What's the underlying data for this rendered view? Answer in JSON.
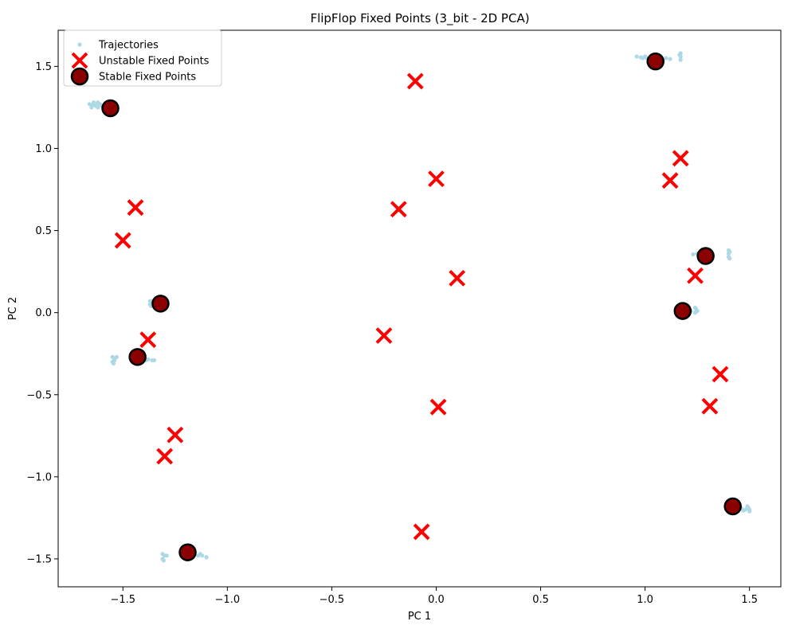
{
  "chart_data": {
    "type": "scatter",
    "title": "FlipFlop Fixed Points (3_bit - 2D PCA)",
    "xlabel": "PC 1",
    "ylabel": "PC 2",
    "xlim": [
      -1.81,
      1.65
    ],
    "ylim": [
      -1.67,
      1.72
    ],
    "x_ticks": [
      {
        "value": -1.5,
        "label": "−1.5"
      },
      {
        "value": -1.0,
        "label": "−1.0"
      },
      {
        "value": -0.5,
        "label": "−0.5"
      },
      {
        "value": 0.0,
        "label": "0.0"
      },
      {
        "value": 0.5,
        "label": "0.5"
      },
      {
        "value": 1.0,
        "label": "1.0"
      },
      {
        "value": 1.5,
        "label": "1.5"
      }
    ],
    "y_ticks": [
      {
        "value": -1.5,
        "label": "−1.5"
      },
      {
        "value": -1.0,
        "label": "−1.0"
      },
      {
        "value": -0.5,
        "label": "−0.5"
      },
      {
        "value": 0.0,
        "label": "0.0"
      },
      {
        "value": 0.5,
        "label": "0.5"
      },
      {
        "value": 1.0,
        "label": "1.0"
      },
      {
        "value": 1.5,
        "label": "1.5"
      }
    ],
    "grid": false,
    "legend_position": "top-left",
    "series": [
      {
        "name": "Trajectories",
        "marker": "dot",
        "color": "#add8e6",
        "points": [
          [
            -1.66,
            1.27
          ],
          [
            -1.65,
            1.26
          ],
          [
            -1.64,
            1.27
          ],
          [
            -1.65,
            1.25
          ],
          [
            -1.63,
            1.26
          ],
          [
            -1.62,
            1.25
          ],
          [
            -1.61,
            1.27
          ],
          [
            -1.6,
            1.26
          ],
          [
            -1.59,
            1.26
          ],
          [
            -1.58,
            1.25
          ],
          [
            -1.64,
            1.28
          ],
          [
            -1.62,
            1.28
          ],
          [
            1.0,
            1.56
          ],
          [
            0.96,
            1.56
          ],
          [
            0.98,
            1.555
          ],
          [
            0.99,
            1.55
          ],
          [
            1.01,
            1.55
          ],
          [
            1.03,
            1.545
          ],
          [
            1.05,
            1.54
          ],
          [
            1.07,
            1.54
          ],
          [
            1.1,
            1.55
          ],
          [
            1.12,
            1.545
          ],
          [
            1.17,
            1.58
          ],
          [
            1.17,
            1.56
          ],
          [
            1.17,
            1.54
          ],
          [
            1.165,
            1.57
          ],
          [
            1.23,
            0.355
          ],
          [
            1.25,
            0.36
          ],
          [
            1.27,
            0.36
          ],
          [
            1.28,
            0.355
          ],
          [
            1.29,
            0.35
          ],
          [
            1.3,
            0.345
          ],
          [
            1.4,
            0.38
          ],
          [
            1.4,
            0.36
          ],
          [
            1.4,
            0.34
          ],
          [
            1.405,
            0.33
          ],
          [
            1.405,
            0.37
          ],
          [
            -1.37,
            0.07
          ],
          [
            -1.36,
            0.06
          ],
          [
            -1.37,
            0.05
          ],
          [
            -1.365,
            0.04
          ],
          [
            -1.36,
            0.07
          ],
          [
            -1.35,
            0.065
          ],
          [
            -1.34,
            0.06
          ],
          [
            1.19,
            0.02
          ],
          [
            1.2,
            0.015
          ],
          [
            1.22,
            0.01
          ],
          [
            1.24,
            0.03
          ],
          [
            1.245,
            0.02
          ],
          [
            1.25,
            0.01
          ],
          [
            1.24,
            0.0
          ],
          [
            -1.55,
            -0.27
          ],
          [
            -1.54,
            -0.28
          ],
          [
            -1.55,
            -0.3
          ],
          [
            -1.545,
            -0.31
          ],
          [
            -1.54,
            -0.29
          ],
          [
            -1.53,
            -0.27
          ],
          [
            -1.4,
            -0.28
          ],
          [
            -1.38,
            -0.285
          ],
          [
            -1.36,
            -0.29
          ],
          [
            -1.35,
            -0.29
          ],
          [
            -1.39,
            -0.29
          ],
          [
            1.44,
            -1.18
          ],
          [
            1.46,
            -1.19
          ],
          [
            1.48,
            -1.2
          ],
          [
            1.49,
            -1.18
          ],
          [
            1.495,
            -1.19
          ],
          [
            1.5,
            -1.2
          ],
          [
            1.5,
            -1.21
          ],
          [
            1.47,
            -1.205
          ],
          [
            -1.31,
            -1.47
          ],
          [
            -1.3,
            -1.48
          ],
          [
            -1.31,
            -1.5
          ],
          [
            -1.305,
            -1.51
          ],
          [
            -1.29,
            -1.48
          ],
          [
            -1.16,
            -1.475
          ],
          [
            -1.14,
            -1.48
          ],
          [
            -1.12,
            -1.48
          ],
          [
            -1.1,
            -1.49
          ],
          [
            -1.13,
            -1.47
          ]
        ]
      },
      {
        "name": "Unstable Fixed Points",
        "marker": "x",
        "color": "#ff0000",
        "points": [
          [
            -0.1,
            1.41
          ],
          [
            1.17,
            0.94
          ],
          [
            0.0,
            0.815
          ],
          [
            1.12,
            0.805
          ],
          [
            -1.44,
            0.64
          ],
          [
            -0.18,
            0.63
          ],
          [
            -1.5,
            0.44
          ],
          [
            0.1,
            0.21
          ],
          [
            1.24,
            0.225
          ],
          [
            -0.25,
            -0.14
          ],
          [
            -1.38,
            -0.165
          ],
          [
            1.36,
            -0.375
          ],
          [
            0.01,
            -0.575
          ],
          [
            1.31,
            -0.57
          ],
          [
            -1.25,
            -0.745
          ],
          [
            -1.3,
            -0.875
          ],
          [
            -0.07,
            -1.335
          ]
        ]
      },
      {
        "name": "Stable Fixed Points",
        "marker": "circle",
        "color": "#8b0000",
        "edgecolor": "#000000",
        "points": [
          [
            1.05,
            1.53
          ],
          [
            -1.56,
            1.245
          ],
          [
            1.29,
            0.345
          ],
          [
            -1.32,
            0.055
          ],
          [
            1.18,
            0.01
          ],
          [
            -1.43,
            -0.27
          ],
          [
            1.42,
            -1.18
          ],
          [
            -1.19,
            -1.46
          ]
        ]
      }
    ]
  }
}
